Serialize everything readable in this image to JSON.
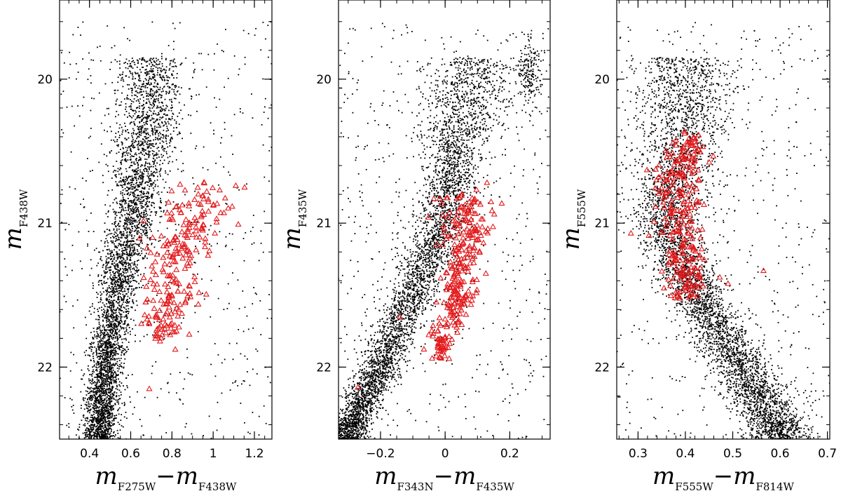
{
  "figure": {
    "panels_count": 3
  },
  "chart_data": [
    {
      "type": "scatter",
      "xlabel": {
        "main": "m",
        "sub1": "F275W",
        "sep": "−m",
        "sub2": "F438W"
      },
      "ylabel": {
        "main": "m",
        "sub": "F438W"
      },
      "xlim": [
        0.255,
        1.285
      ],
      "ylim": [
        22.5,
        19.45
      ],
      "y_inverted": true,
      "x_ticks_major": [
        0.4,
        0.6,
        0.8,
        1.0,
        1.2
      ],
      "x_tick_labels": [
        "0.4",
        "0.6",
        "0.8",
        "1",
        "1.2"
      ],
      "x_minor_step": 0.05,
      "y_ticks_major": [
        20,
        21,
        22
      ],
      "y_tick_labels": [
        "20",
        "21",
        "22"
      ],
      "y_minor_step": 0.2,
      "series": [
        {
          "marker": "dot",
          "color": "#000000",
          "count": 5200,
          "shape": "main sequence: color ~0.47 at mag 22.4 rising to ~0.68 at mag 20.3, spread ~0.05",
          "ridge": [
            [
              22.45,
              0.45
            ],
            [
              22.0,
              0.48
            ],
            [
              21.6,
              0.52
            ],
            [
              21.2,
              0.57
            ],
            [
              20.9,
              0.62
            ],
            [
              20.6,
              0.65
            ],
            [
              20.3,
              0.68
            ],
            [
              20.0,
              0.7
            ]
          ],
          "width": [
            [
              22.45,
              0.04
            ],
            [
              21.5,
              0.045
            ],
            [
              21.0,
              0.06
            ],
            [
              20.5,
              0.07
            ],
            [
              20.0,
              0.08
            ]
          ],
          "field_fraction": 0.1
        },
        {
          "marker": "triangle",
          "color": "#e31a1c",
          "count": 240,
          "region": "red sequence: color 0.68–1.06 between mag 20.7 and 21.85",
          "ridge": [
            [
              21.8,
              0.74
            ],
            [
              21.4,
              0.8
            ],
            [
              21.0,
              0.9
            ],
            [
              20.75,
              0.96
            ]
          ],
          "width": [
            [
              21.8,
              0.05
            ],
            [
              21.0,
              0.08
            ],
            [
              20.75,
              0.08
            ]
          ],
          "extra_points": [
            [
              0.69,
              22.15
            ]
          ]
        }
      ]
    },
    {
      "type": "scatter",
      "xlabel": {
        "main": "m",
        "sub1": "F343N",
        "sep": "−m",
        "sub2": "F435W"
      },
      "ylabel": {
        "main": "m",
        "sub": "F435W"
      },
      "xlim": [
        -0.33,
        0.325
      ],
      "ylim": [
        22.5,
        19.45
      ],
      "y_inverted": true,
      "x_ticks_major": [
        -0.2,
        0,
        0.2
      ],
      "x_tick_labels": [
        "−0.2",
        "0",
        "0.2"
      ],
      "x_minor_step": 0.05,
      "y_ticks_major": [
        20,
        21,
        22
      ],
      "y_tick_labels": [
        "20",
        "21",
        "22"
      ],
      "y_minor_step": 0.2,
      "series": [
        {
          "marker": "dot",
          "color": "#000000",
          "count": 5200,
          "shape": "narrow diagonal main sequence from (-0.3, 22.45) to (0.05, 20.3) with a clump near (0.26, 19.95)",
          "ridge": [
            [
              22.45,
              -0.3
            ],
            [
              22.0,
              -0.2
            ],
            [
              21.6,
              -0.12
            ],
            [
              21.2,
              -0.04
            ],
            [
              20.9,
              0.0
            ],
            [
              20.6,
              0.02
            ],
            [
              20.3,
              0.05
            ],
            [
              20.0,
              0.08
            ]
          ],
          "width": [
            [
              22.45,
              0.03
            ],
            [
              21.5,
              0.035
            ],
            [
              21.0,
              0.04
            ],
            [
              20.5,
              0.05
            ],
            [
              20.0,
              0.07
            ]
          ],
          "field_fraction": 0.12,
          "clump": {
            "x": 0.26,
            "y": 19.95,
            "sx": 0.02,
            "sy": 0.12,
            "count": 200
          }
        },
        {
          "marker": "triangle",
          "color": "#e31a1c",
          "count": 300,
          "region": "red sequence right of the main sequence: color ~-0.02 to 0.16 between mag 20.7 and 21.9",
          "ridge": [
            [
              21.9,
              -0.02
            ],
            [
              21.5,
              0.04
            ],
            [
              21.1,
              0.07
            ],
            [
              20.8,
              0.08
            ]
          ],
          "width": [
            [
              21.9,
              0.02
            ],
            [
              21.0,
              0.035
            ],
            [
              20.8,
              0.04
            ]
          ],
          "extra_points": [
            [
              -0.27,
              22.14
            ],
            [
              -0.14,
              21.65
            ]
          ]
        }
      ]
    },
    {
      "type": "scatter",
      "xlabel": {
        "main": "m",
        "sub1": "F555W",
        "sep": "−m",
        "sub2": "F814W"
      },
      "ylabel": {
        "main": "m",
        "sub": "F555W"
      },
      "xlim": [
        0.255,
        0.705
      ],
      "ylim": [
        22.5,
        19.45
      ],
      "y_inverted": true,
      "x_ticks_major": [
        0.3,
        0.4,
        0.5,
        0.6,
        0.7
      ],
      "x_tick_labels": [
        "0.3",
        "0.4",
        "0.5",
        "0.6",
        "0.7"
      ],
      "x_minor_step": 0.02,
      "y_ticks_major": [
        20,
        21,
        22
      ],
      "y_tick_labels": [
        "20",
        "21",
        "22"
      ],
      "y_minor_step": 0.2,
      "series": [
        {
          "marker": "dot",
          "color": "#000000",
          "count": 5600,
          "shape": "turn-off at color ~0.36 near mag 21, main sequence bending to ~0.6 at mag 22.5",
          "ridge": [
            [
              22.45,
              0.6
            ],
            [
              22.0,
              0.52
            ],
            [
              21.6,
              0.44
            ],
            [
              21.2,
              0.38
            ],
            [
              21.0,
              0.36
            ],
            [
              20.7,
              0.37
            ],
            [
              20.4,
              0.39
            ],
            [
              20.1,
              0.4
            ]
          ],
          "width": [
            [
              22.45,
              0.035
            ],
            [
              21.6,
              0.03
            ],
            [
              21.0,
              0.035
            ],
            [
              20.5,
              0.045
            ],
            [
              20.1,
              0.05
            ]
          ],
          "field_fraction": 0.1
        },
        {
          "marker": "triangle",
          "color": "#e31a1c",
          "count": 280,
          "region": "overlaps the turn-off: color 0.32–0.47 between mag 20.3 and 21.5",
          "ridge": [
            [
              21.5,
              0.4
            ],
            [
              21.1,
              0.39
            ],
            [
              20.8,
              0.38
            ],
            [
              20.4,
              0.41
            ]
          ],
          "width": [
            [
              21.5,
              0.02
            ],
            [
              21.0,
              0.025
            ],
            [
              20.4,
              0.025
            ]
          ],
          "extra_points": [
            [
              0.285,
              21.07
            ],
            [
              0.565,
              21.33
            ],
            [
              0.49,
              21.42
            ]
          ]
        }
      ]
    }
  ]
}
